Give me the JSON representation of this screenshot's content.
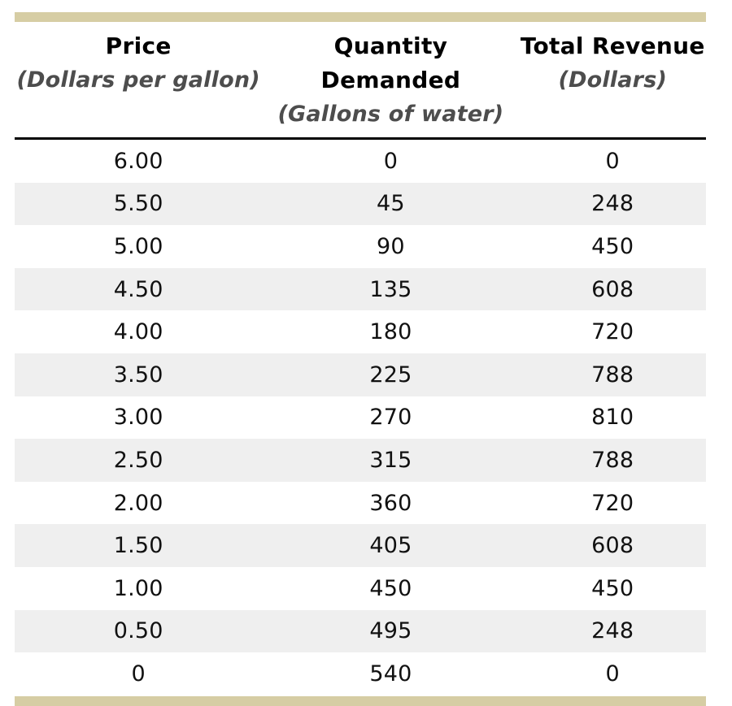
{
  "table": {
    "columns": [
      {
        "label": "Price",
        "sublabel": "(Dollars per gallon)"
      },
      {
        "label": "Quantity Demanded",
        "sublabel": "(Gallons of water)"
      },
      {
        "label": "Total Revenue",
        "sublabel": "(Dollars)"
      }
    ],
    "rows": [
      [
        "6.00",
        "0",
        "0"
      ],
      [
        "5.50",
        "45",
        "248"
      ],
      [
        "5.00",
        "90",
        "450"
      ],
      [
        "4.50",
        "135",
        "608"
      ],
      [
        "4.00",
        "180",
        "720"
      ],
      [
        "3.50",
        "225",
        "788"
      ],
      [
        "3.00",
        "270",
        "810"
      ],
      [
        "2.50",
        "315",
        "788"
      ],
      [
        "2.00",
        "360",
        "720"
      ],
      [
        "1.50",
        "405",
        "608"
      ],
      [
        "1.00",
        "450",
        "450"
      ],
      [
        "0.50",
        "495",
        "248"
      ],
      [
        "0",
        "540",
        "0"
      ]
    ]
  },
  "chart_data": {
    "type": "table",
    "title": "",
    "columns": [
      "Price (Dollars per gallon)",
      "Quantity Demanded (Gallons of water)",
      "Total Revenue (Dollars)"
    ],
    "price": [
      6.0,
      5.5,
      5.0,
      4.5,
      4.0,
      3.5,
      3.0,
      2.5,
      2.0,
      1.5,
      1.0,
      0.5,
      0
    ],
    "quantity_demanded": [
      0,
      45,
      90,
      135,
      180,
      225,
      270,
      315,
      360,
      405,
      450,
      495,
      540
    ],
    "total_revenue": [
      0,
      248,
      450,
      608,
      720,
      788,
      810,
      788,
      720,
      608,
      450,
      248,
      0
    ],
    "layout": {
      "striped_rows": true,
      "stripe_start_index": 1
    }
  },
  "colors": {
    "accent_bar": "#d6cda4",
    "stripe": "#efefef",
    "header_text": "#000000",
    "subheader_text": "#4d4d4d",
    "body_text": "#111111",
    "header_rule": "#000000",
    "background": "#ffffff"
  }
}
